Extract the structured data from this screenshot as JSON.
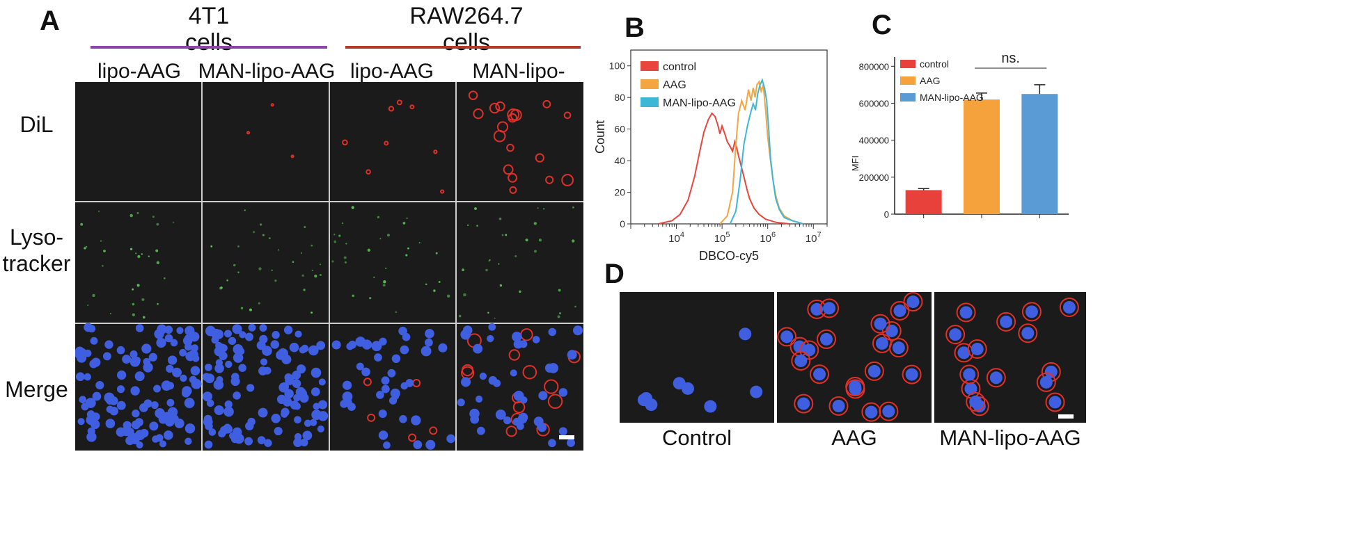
{
  "panelA": {
    "label": "A",
    "group1": {
      "line1": "4T1",
      "line2": "cells",
      "color": "#8e44ad"
    },
    "group2": {
      "line1": "RAW264.7",
      "line2": "cells",
      "color": "#b03a2e"
    },
    "columns": [
      "lipo-AAG",
      "MAN-lipo-AAG",
      "lipo-AAG",
      "MAN-lipo-AAG"
    ],
    "rows": [
      "DiL",
      "Lyso-\ntracker",
      "Merge"
    ]
  },
  "panelB": {
    "label": "B",
    "chart_data": {
      "type": "line",
      "title": "",
      "xlabel": "DBCO-cy5",
      "ylabel": "Count",
      "xscale": "log",
      "xlim": [
        1000,
        20000000
      ],
      "ylim": [
        0,
        110
      ],
      "xticks": [
        {
          "v": 10000,
          "base": "10",
          "exp": "4"
        },
        {
          "v": 100000,
          "base": "10",
          "exp": "5"
        },
        {
          "v": 1000000,
          "base": "10",
          "exp": "6"
        },
        {
          "v": 10000000,
          "base": "10",
          "exp": "7"
        }
      ],
      "yticks": [
        0,
        20,
        40,
        60,
        80,
        100
      ],
      "legend_position": "top-left",
      "series": [
        {
          "name": "control",
          "color": "#e8453c",
          "x": [
            4000,
            8000,
            12000,
            18000,
            25000,
            32000,
            40000,
            50000,
            60000,
            70000,
            80000,
            90000,
            100000,
            115000,
            130000,
            150000,
            170000,
            190000,
            210000,
            230000,
            260000,
            300000,
            350000,
            400000,
            500000,
            650000,
            900000,
            1500000,
            3000000
          ],
          "y": [
            0,
            2,
            6,
            15,
            30,
            45,
            58,
            66,
            70,
            68,
            63,
            57,
            62,
            57,
            52,
            49,
            46,
            52,
            48,
            43,
            37,
            30,
            22,
            16,
            10,
            6,
            3,
            1,
            0
          ]
        },
        {
          "name": "AAG",
          "color": "#f2a541",
          "x": [
            90000,
            130000,
            170000,
            200000,
            230000,
            270000,
            320000,
            380000,
            430000,
            480000,
            530000,
            580000,
            650000,
            720000,
            800000,
            900000,
            1000000,
            1150000,
            1300000,
            1500000,
            1800000,
            2300000,
            3500000,
            6000000
          ],
          "y": [
            0,
            5,
            20,
            50,
            70,
            78,
            72,
            85,
            78,
            86,
            80,
            88,
            90,
            84,
            88,
            72,
            55,
            40,
            28,
            18,
            10,
            5,
            2,
            0
          ]
        },
        {
          "name": "MAN-lipo-AAG",
          "color": "#3cb7d6",
          "x": [
            150000,
            200000,
            250000,
            300000,
            360000,
            420000,
            480000,
            540000,
            600000,
            680000,
            760000,
            850000,
            950000,
            1050000,
            1150000,
            1300000,
            1500000,
            1800000,
            2300000,
            3500000,
            6000000
          ],
          "y": [
            0,
            8,
            28,
            50,
            62,
            70,
            76,
            72,
            82,
            88,
            91,
            86,
            78,
            60,
            42,
            28,
            16,
            9,
            4,
            2,
            0
          ]
        }
      ]
    }
  },
  "panelC": {
    "label": "C",
    "chart_data": {
      "type": "bar",
      "title": "",
      "xlabel": "",
      "ylabel": "MFI",
      "ylim": [
        0,
        850000
      ],
      "yticks": [
        {
          "v": 0,
          "label": "0"
        },
        {
          "v": 200000,
          "label": "200000"
        },
        {
          "v": 400000,
          "label": "400000"
        },
        {
          "v": 600000,
          "label": "600000"
        },
        {
          "v": 800000,
          "label": "800000"
        }
      ],
      "categories": [
        "control",
        "AAG",
        "MAN-lipo-AAG"
      ],
      "values": [
        130000,
        620000,
        650000
      ],
      "errors": [
        8000,
        35000,
        50000
      ],
      "colors": [
        "#e8403a",
        "#f5a23d",
        "#5b9bd5"
      ],
      "significance": "ns.",
      "legend_position": "top-left"
    }
  },
  "panelD": {
    "label": "D",
    "captions": [
      "Control",
      "AAG",
      "MAN-lipo-AAG"
    ]
  }
}
